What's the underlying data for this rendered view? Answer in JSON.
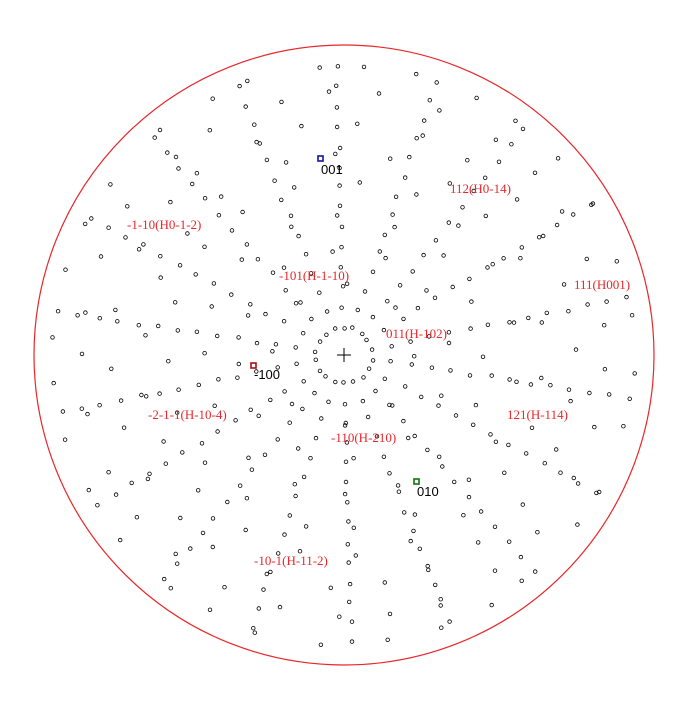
{
  "colors": {
    "background": "#ffffff",
    "circle": "#e8272b",
    "label": "#e8272b",
    "axis_label": "#000000",
    "dot": "#000000",
    "center": "#000000",
    "marker_001": "#1010a8",
    "marker_m100": "#a81010",
    "marker_010": "#107010"
  },
  "axes": {
    "a001": "001",
    "am100": "-100",
    "a010": "010"
  },
  "labels": {
    "l1": "-1-10(H0-1-2)",
    "l2": "112(H0-14)",
    "l3": "-101(H-1-10)",
    "l4": "111(H001)",
    "l5": "011(H-102)",
    "l6": "-2-1-1(H-10-4)",
    "l7": "121(H-114)",
    "l8": "-110(H-210)",
    "l9": "-10-1(H-11-2)"
  }
}
